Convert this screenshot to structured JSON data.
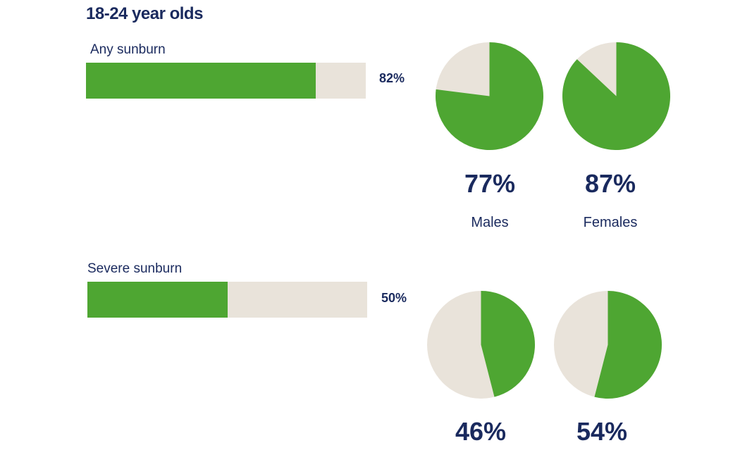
{
  "colors": {
    "accent": "#4ea632",
    "track": "#e9e3da",
    "text": "#1a2a5e"
  },
  "title": "18-24 year olds",
  "legend": {
    "males": "Males",
    "females": "Females"
  },
  "chart_data": [
    {
      "type": "bar",
      "orientation": "horizontal",
      "title": "Any sunburn",
      "categories": [
        "Any sunburn"
      ],
      "values": [
        82
      ],
      "value_label": "82%",
      "xlim": [
        0,
        100
      ]
    },
    {
      "type": "pie",
      "title": "Any sunburn",
      "series": [
        {
          "name": "Males",
          "values": [
            77,
            23
          ],
          "value_label": "77%"
        },
        {
          "name": "Females",
          "values": [
            87,
            13
          ],
          "value_label": "87%"
        }
      ]
    },
    {
      "type": "bar",
      "orientation": "horizontal",
      "title": "Severe sunburn",
      "categories": [
        "Severe sunburn"
      ],
      "values": [
        50
      ],
      "value_label": "50%",
      "xlim": [
        0,
        100
      ]
    },
    {
      "type": "pie",
      "title": "Severe sunburn",
      "series": [
        {
          "name": "Males",
          "values": [
            46,
            54
          ],
          "value_label": "46%"
        },
        {
          "name": "Females",
          "values": [
            54,
            46
          ],
          "value_label": "54%"
        }
      ]
    }
  ]
}
